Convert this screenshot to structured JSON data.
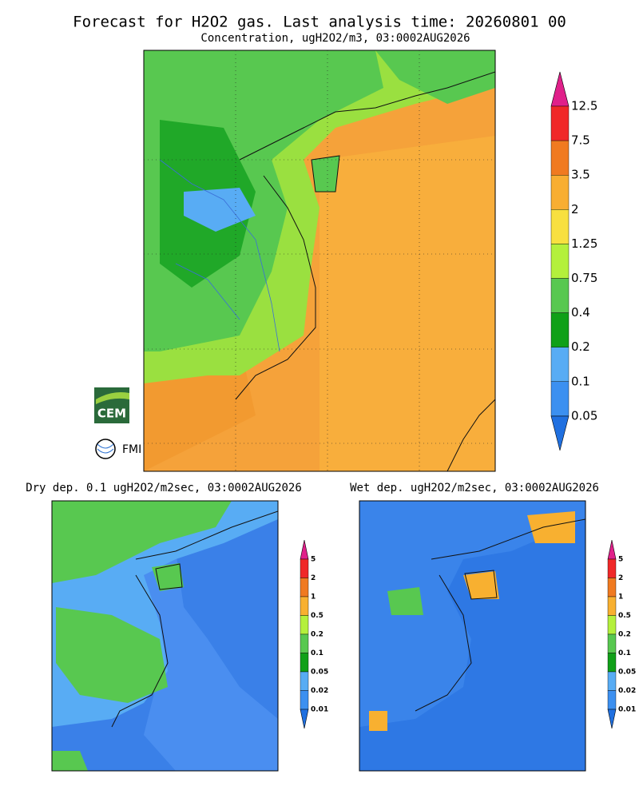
{
  "header": {
    "title": "Forecast for H2O2 gas. Last analysis time: 20260801 00",
    "subtitle": "Concentration, ugH2O2/m3, 03:0002AUG2026"
  },
  "main_map": {
    "colorbar": {
      "labels": [
        "12.5",
        "7.5",
        "3.5",
        "2",
        "1.25",
        "0.75",
        "0.4",
        "0.2",
        "0.1",
        "0.05"
      ],
      "colors": [
        "#e0208a",
        "#f02828",
        "#f07a20",
        "#f8ae32",
        "#f8e040",
        "#b4f03c",
        "#58c850",
        "#10a018",
        "#58acf4",
        "#3c90f0",
        "#2070e0"
      ]
    }
  },
  "logos": {
    "cem": "CEM",
    "fmi": "FMI"
  },
  "panels": [
    {
      "title": "Dry dep. 0.1 ugH2O2/m2sec, 03:0002AUG2026",
      "colorbar": {
        "labels": [
          "5",
          "2",
          "1",
          "0.5",
          "0.2",
          "0.1",
          "0.05",
          "0.02",
          "0.01"
        ],
        "colors": [
          "#e0208a",
          "#f02828",
          "#f07a20",
          "#f8b030",
          "#b4f03c",
          "#58c850",
          "#10a018",
          "#58acf4",
          "#3c90f0",
          "#2070e0"
        ]
      }
    },
    {
      "title": "Wet dep. ugH2O2/m2sec, 03:0002AUG2026",
      "colorbar": {
        "labels": [
          "5",
          "2",
          "1",
          "0.5",
          "0.2",
          "0.1",
          "0.05",
          "0.02",
          "0.01"
        ],
        "colors": [
          "#e0208a",
          "#f02828",
          "#f07a20",
          "#f8b030",
          "#b4f03c",
          "#58c850",
          "#10a018",
          "#58acf4",
          "#3c90f0",
          "#2070e0"
        ]
      }
    }
  ]
}
